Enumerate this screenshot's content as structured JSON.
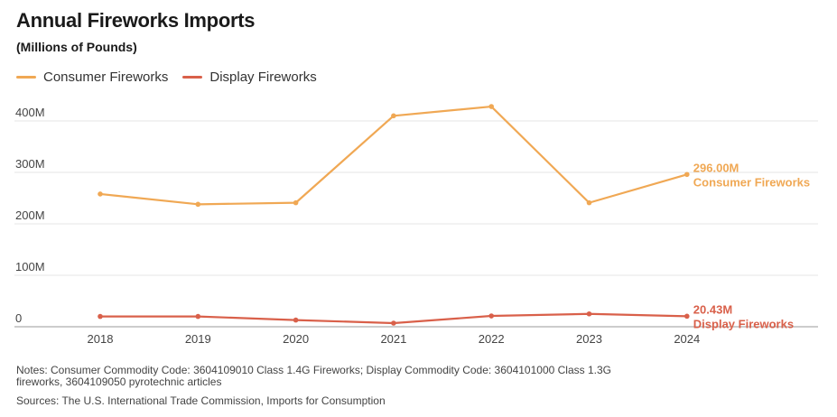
{
  "header": {
    "title": "Annual Fireworks Imports",
    "subtitle": "(Millions of Pounds)"
  },
  "chart_data": {
    "type": "line",
    "x": [
      "2018",
      "2019",
      "2020",
      "2021",
      "2022",
      "2023",
      "2024"
    ],
    "y_ticks": [
      {
        "value": 0,
        "label": "0"
      },
      {
        "value": 100,
        "label": "100M"
      },
      {
        "value": 200,
        "label": "200M"
      },
      {
        "value": 300,
        "label": "300M"
      },
      {
        "value": 400,
        "label": "400M"
      }
    ],
    "ylim": [
      0,
      400
    ],
    "grid": true,
    "legend_position": "top-left",
    "series": [
      {
        "name": "Consumer Fireworks",
        "color": "#f0a854",
        "values": [
          258,
          238,
          241,
          410,
          428,
          241,
          296
        ],
        "end_label_value": "296.00M",
        "end_label_name": "Consumer Fireworks"
      },
      {
        "name": "Display Fireworks",
        "color": "#d9604a",
        "values": [
          20,
          20,
          13,
          7,
          21,
          25,
          20.43
        ],
        "end_label_value": "20.43M",
        "end_label_name": "Display Fireworks"
      }
    ]
  },
  "footer": {
    "notes": "Notes: Consumer Commodity Code: 3604109010 Class 1.4G Fireworks; Display Commodity Code: 3604101000 Class 1.3G fireworks, 3604109050 pyrotechnic articles",
    "sources": "Sources: The U.S. International Trade Commission, Imports for Consumption"
  }
}
